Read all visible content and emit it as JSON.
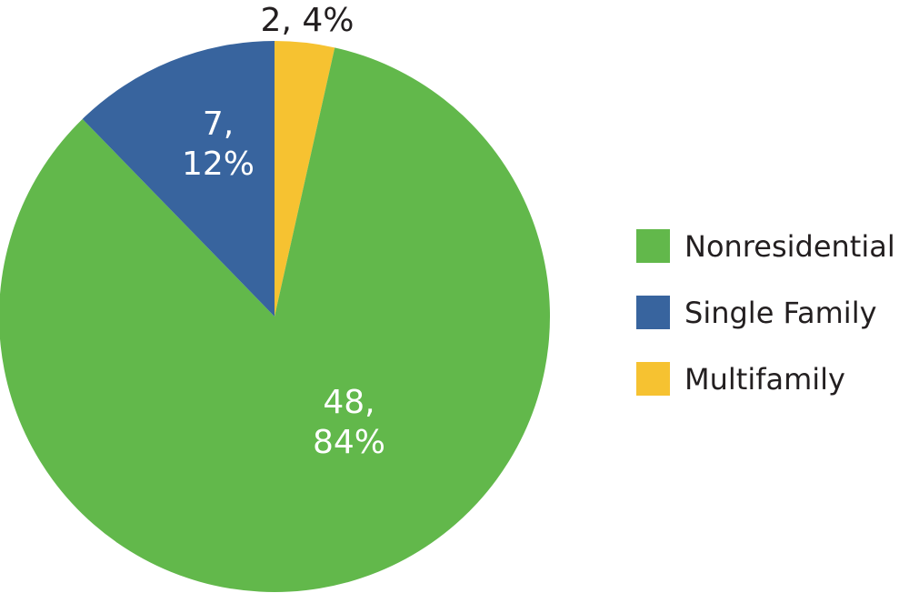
{
  "chart_data": {
    "type": "pie",
    "categories": [
      "Nonresidential",
      "Single Family",
      "Multifamily"
    ],
    "values": [
      48,
      7,
      2
    ],
    "percent_labels": [
      "84%",
      "12%",
      "4%"
    ],
    "data_labels": [
      {
        "line1": "48,",
        "line2": "84%"
      },
      {
        "line1": "7,",
        "line2": "12%"
      },
      {
        "line1": "2, 4%",
        "line2": ""
      }
    ],
    "colors": [
      "#62b84b",
      "#38649e",
      "#f6c231"
    ],
    "label_colors": [
      "#ffffff",
      "#ffffff",
      "#231f20"
    ],
    "legend_position": "right",
    "title": ""
  }
}
